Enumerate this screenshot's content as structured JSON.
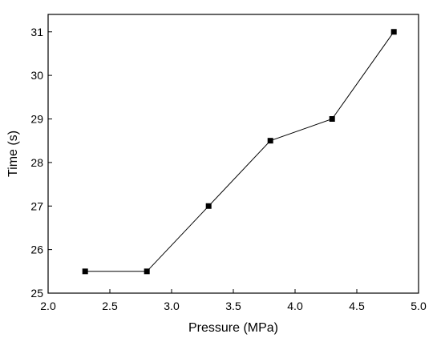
{
  "chart_data": {
    "type": "line",
    "xlabel": "Pressure (MPa)",
    "ylabel": "Time (s)",
    "xlim": [
      2.0,
      5.0
    ],
    "ylim": [
      25,
      31.4
    ],
    "xticks": [
      "2.0",
      "2.5",
      "3.0",
      "3.5",
      "4.0",
      "4.5",
      "5.0"
    ],
    "yticks": [
      "25",
      "26",
      "27",
      "28",
      "29",
      "30",
      "31"
    ],
    "grid": false,
    "marker": "square",
    "line_color": "#000000",
    "series": [
      {
        "x": [
          2.3,
          2.8,
          3.3,
          3.8,
          4.3,
          4.8
        ],
        "y": [
          25.5,
          25.5,
          27.0,
          28.5,
          29.0,
          31.0
        ]
      }
    ]
  }
}
